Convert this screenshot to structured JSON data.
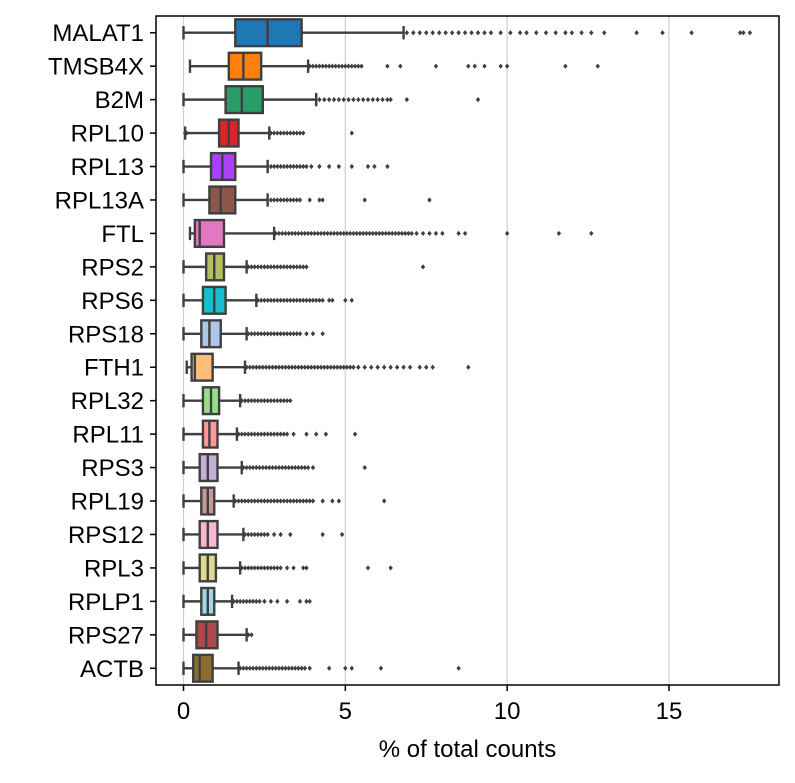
{
  "chart_data": {
    "type": "box",
    "title": "",
    "xlabel": "% of total counts",
    "ylabel": "",
    "xlim": [
      -0.85,
      18.4
    ],
    "xticks": [
      0,
      5,
      10,
      15
    ],
    "grid": "vertical",
    "categories": [
      "MALAT1",
      "TMSB4X",
      "B2M",
      "RPL10",
      "RPL13",
      "RPL13A",
      "FTL",
      "RPS2",
      "RPS6",
      "RPS18",
      "FTH1",
      "RPL32",
      "RPL11",
      "RPS3",
      "RPL19",
      "RPS12",
      "RPL3",
      "RPLP1",
      "RPS27",
      "ACTB"
    ],
    "colors": [
      "#1f77b4",
      "#ff7f0e",
      "#279e68",
      "#d62728",
      "#aa40fc",
      "#8c564b",
      "#e377c2",
      "#b5bd61",
      "#17becf",
      "#aec7e8",
      "#ffbb78",
      "#98df8a",
      "#ff9896",
      "#c5b0d5",
      "#c49c94",
      "#f7b6d2",
      "#dbdb8d",
      "#9edae5",
      "#ad494a",
      "#8c6d31"
    ],
    "boxes": [
      {
        "min": 0.0,
        "q1": 1.6,
        "median": 2.6,
        "q3": 3.65,
        "max": 6.8,
        "outliers": [
          6.9,
          7.1,
          7.3,
          7.5,
          7.7,
          7.9,
          8.1,
          8.3,
          8.5,
          8.7,
          8.9,
          9.1,
          9.3,
          9.5,
          9.8,
          10.1,
          10.4,
          10.6,
          10.9,
          11.2,
          11.5,
          11.8,
          12.0,
          12.3,
          12.6,
          13.0,
          14.0,
          14.8,
          15.7,
          17.2,
          17.3,
          17.5
        ]
      },
      {
        "min": 0.2,
        "q1": 1.4,
        "median": 1.85,
        "q3": 2.4,
        "max": 3.85,
        "outliers": [
          3.9,
          4.0,
          4.1,
          4.2,
          4.3,
          4.4,
          4.5,
          4.6,
          4.7,
          4.8,
          4.9,
          5.0,
          5.1,
          5.2,
          5.3,
          5.4,
          5.5,
          6.3,
          6.7,
          7.8,
          8.8,
          9.0,
          9.3,
          9.8,
          10.0,
          11.8,
          12.8
        ]
      },
      {
        "min": 0.0,
        "q1": 1.3,
        "median": 1.8,
        "q3": 2.45,
        "max": 4.1,
        "outliers": [
          4.2,
          4.35,
          4.5,
          4.65,
          4.8,
          4.95,
          5.1,
          5.25,
          5.4,
          5.55,
          5.7,
          5.85,
          6.0,
          6.15,
          6.3,
          6.4,
          6.9,
          9.1
        ]
      },
      {
        "min": 0.05,
        "q1": 1.1,
        "median": 1.4,
        "q3": 1.7,
        "max": 2.65,
        "outliers": [
          0.05,
          0.1,
          2.7,
          2.8,
          2.9,
          3.0,
          3.1,
          3.2,
          3.3,
          3.4,
          3.5,
          3.6,
          3.7,
          5.2
        ]
      },
      {
        "min": 0.0,
        "q1": 0.85,
        "median": 1.2,
        "q3": 1.6,
        "max": 2.6,
        "outliers": [
          2.7,
          2.8,
          2.9,
          3.0,
          3.1,
          3.2,
          3.3,
          3.4,
          3.5,
          3.6,
          3.7,
          3.8,
          3.95,
          4.2,
          4.5,
          4.8,
          5.2,
          5.7,
          5.9,
          6.3
        ]
      },
      {
        "min": 0.0,
        "q1": 0.8,
        "median": 1.15,
        "q3": 1.6,
        "max": 2.6,
        "outliers": [
          2.7,
          2.8,
          2.9,
          3.0,
          3.1,
          3.2,
          3.3,
          3.4,
          3.5,
          3.6,
          3.9,
          4.2,
          4.3,
          5.6,
          7.6
        ]
      },
      {
        "min": 0.2,
        "q1": 0.35,
        "median": 0.5,
        "q3": 1.25,
        "max": 2.8,
        "outliers": [
          2.85,
          2.95,
          3.05,
          3.15,
          3.25,
          3.35,
          3.45,
          3.55,
          3.65,
          3.75,
          3.85,
          3.95,
          4.05,
          4.15,
          4.25,
          4.35,
          4.45,
          4.55,
          4.65,
          4.75,
          4.85,
          4.95,
          5.05,
          5.15,
          5.25,
          5.35,
          5.45,
          5.55,
          5.65,
          5.75,
          5.85,
          5.95,
          6.05,
          6.15,
          6.25,
          6.35,
          6.45,
          6.55,
          6.65,
          6.75,
          6.85,
          6.95,
          7.05,
          7.2,
          7.4,
          7.6,
          7.8,
          8.0,
          8.5,
          8.7,
          10.0,
          11.6,
          12.6
        ]
      },
      {
        "min": 0.0,
        "q1": 0.7,
        "median": 0.95,
        "q3": 1.25,
        "max": 1.95,
        "outliers": [
          2.0,
          2.1,
          2.2,
          2.3,
          2.4,
          2.5,
          2.6,
          2.7,
          2.8,
          2.9,
          3.0,
          3.1,
          3.2,
          3.3,
          3.4,
          3.5,
          3.6,
          3.7,
          3.8,
          7.4
        ]
      },
      {
        "min": 0.0,
        "q1": 0.6,
        "median": 0.95,
        "q3": 1.3,
        "max": 2.25,
        "outliers": [
          2.3,
          2.4,
          2.5,
          2.6,
          2.7,
          2.8,
          2.9,
          3.0,
          3.1,
          3.2,
          3.3,
          3.4,
          3.5,
          3.6,
          3.7,
          3.8,
          3.9,
          4.0,
          4.1,
          4.2,
          4.3,
          4.5,
          4.6,
          5.0,
          5.2
        ]
      },
      {
        "min": 0.0,
        "q1": 0.55,
        "median": 0.8,
        "q3": 1.15,
        "max": 1.95,
        "outliers": [
          2.0,
          2.1,
          2.2,
          2.3,
          2.4,
          2.5,
          2.6,
          2.7,
          2.8,
          2.9,
          3.0,
          3.1,
          3.2,
          3.3,
          3.4,
          3.5,
          3.6,
          3.8,
          4.0,
          4.3
        ]
      },
      {
        "min": 0.1,
        "q1": 0.25,
        "median": 0.35,
        "q3": 0.9,
        "max": 1.9,
        "outliers": [
          1.95,
          2.05,
          2.15,
          2.25,
          2.35,
          2.45,
          2.55,
          2.65,
          2.75,
          2.85,
          2.95,
          3.05,
          3.15,
          3.25,
          3.35,
          3.45,
          3.55,
          3.65,
          3.75,
          3.85,
          3.95,
          4.05,
          4.15,
          4.25,
          4.35,
          4.45,
          4.55,
          4.65,
          4.75,
          4.85,
          4.95,
          5.05,
          5.15,
          5.25,
          5.4,
          5.6,
          5.8,
          6.0,
          6.2,
          6.4,
          6.6,
          6.8,
          7.0,
          7.3,
          7.5,
          7.7,
          8.8
        ]
      },
      {
        "min": 0.0,
        "q1": 0.6,
        "median": 0.85,
        "q3": 1.1,
        "max": 1.75,
        "outliers": [
          1.8,
          1.9,
          2.0,
          2.1,
          2.2,
          2.3,
          2.4,
          2.5,
          2.6,
          2.7,
          2.8,
          2.9,
          3.0,
          3.1,
          3.2,
          3.3
        ]
      },
      {
        "min": 0.0,
        "q1": 0.6,
        "median": 0.8,
        "q3": 1.05,
        "max": 1.65,
        "outliers": [
          1.7,
          1.8,
          1.9,
          2.0,
          2.1,
          2.2,
          2.3,
          2.4,
          2.5,
          2.6,
          2.7,
          2.8,
          2.9,
          3.0,
          3.1,
          3.2,
          3.4,
          3.8,
          4.1,
          4.4,
          5.3
        ]
      },
      {
        "min": 0.0,
        "q1": 0.5,
        "median": 0.75,
        "q3": 1.05,
        "max": 1.8,
        "outliers": [
          1.85,
          1.95,
          2.05,
          2.15,
          2.25,
          2.35,
          2.45,
          2.55,
          2.65,
          2.75,
          2.85,
          2.95,
          3.05,
          3.15,
          3.25,
          3.35,
          3.45,
          3.55,
          3.65,
          3.75,
          3.85,
          4.0,
          5.6
        ]
      },
      {
        "min": 0.0,
        "q1": 0.55,
        "median": 0.75,
        "q3": 0.95,
        "max": 1.55,
        "outliers": [
          1.6,
          1.7,
          1.8,
          1.9,
          2.0,
          2.1,
          2.2,
          2.3,
          2.4,
          2.5,
          2.6,
          2.7,
          2.8,
          2.9,
          3.0,
          3.1,
          3.2,
          3.3,
          3.4,
          3.5,
          3.6,
          3.7,
          3.8,
          3.9,
          4.0,
          4.3,
          4.6,
          4.8,
          6.2
        ]
      },
      {
        "min": 0.0,
        "q1": 0.5,
        "median": 0.75,
        "q3": 1.05,
        "max": 1.85,
        "outliers": [
          1.9,
          2.0,
          2.1,
          2.2,
          2.3,
          2.4,
          2.5,
          2.6,
          2.8,
          3.0,
          3.3,
          4.3,
          4.9
        ]
      },
      {
        "min": 0.0,
        "q1": 0.5,
        "median": 0.75,
        "q3": 1.0,
        "max": 1.75,
        "outliers": [
          1.8,
          1.9,
          2.0,
          2.1,
          2.2,
          2.3,
          2.4,
          2.5,
          2.6,
          2.7,
          2.8,
          2.9,
          3.0,
          3.2,
          3.4,
          3.7,
          3.8,
          5.7,
          6.4
        ]
      },
      {
        "min": 0.0,
        "q1": 0.55,
        "median": 0.75,
        "q3": 0.95,
        "max": 1.5,
        "outliers": [
          1.55,
          1.65,
          1.75,
          1.85,
          1.95,
          2.05,
          2.15,
          2.25,
          2.35,
          2.5,
          2.7,
          2.9,
          3.2,
          3.6,
          3.8,
          3.9
        ]
      },
      {
        "min": 0.0,
        "q1": 0.4,
        "median": 0.7,
        "q3": 1.05,
        "max": 1.95,
        "outliers": [
          2.0,
          2.1
        ]
      },
      {
        "min": 0.0,
        "q1": 0.3,
        "median": 0.5,
        "q3": 0.9,
        "max": 1.7,
        "outliers": [
          1.75,
          1.85,
          1.95,
          2.05,
          2.15,
          2.25,
          2.35,
          2.45,
          2.55,
          2.65,
          2.75,
          2.85,
          2.95,
          3.05,
          3.15,
          3.25,
          3.35,
          3.45,
          3.55,
          3.65,
          3.75,
          3.9,
          4.5,
          5.0,
          5.2,
          6.1,
          8.5
        ]
      }
    ]
  }
}
